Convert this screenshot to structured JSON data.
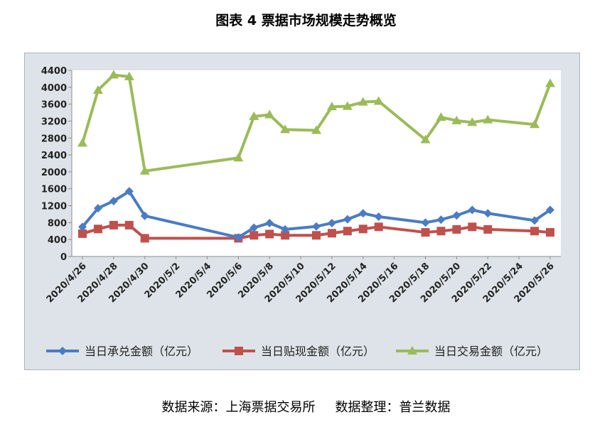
{
  "figure_title": "图表 4  票据市场规模走势概览",
  "source_note": "数据来源：上海票据交易所",
  "arrangement_note": "数据整理：普兰数据",
  "colors": {
    "background": "#dde3e8",
    "plot_bg": "#ffffff",
    "series": [
      "#4a7cc4",
      "#c0504d",
      "#9bbb59"
    ]
  },
  "chart_data": {
    "type": "line",
    "title": "",
    "xlabel": "",
    "ylabel": "",
    "ylim": [
      0,
      4400
    ],
    "yticks": [
      0,
      400,
      800,
      1200,
      1600,
      2000,
      2400,
      2800,
      3200,
      3600,
      4000,
      4400
    ],
    "x_axis_labels": [
      "2020/4/26",
      "2020/4/28",
      "2020/4/30",
      "2020/5/2",
      "2020/5/4",
      "2020/5/6",
      "2020/5/8",
      "2020/5/10",
      "2020/5/12",
      "2020/5/14",
      "2020/5/16",
      "2020/5/18",
      "2020/5/20",
      "2020/5/22",
      "2020/5/24",
      "2020/5/26"
    ],
    "x": [
      "2020/4/26",
      "2020/4/27",
      "2020/4/28",
      "2020/4/29",
      "2020/4/30",
      "2020/5/6",
      "2020/5/7",
      "2020/5/8",
      "2020/5/9",
      "2020/5/11",
      "2020/5/12",
      "2020/5/13",
      "2020/5/14",
      "2020/5/15",
      "2020/5/18",
      "2020/5/19",
      "2020/5/20",
      "2020/5/21",
      "2020/5/22",
      "2020/5/25",
      "2020/5/26"
    ],
    "series": [
      {
        "name": "当日承兑金额（亿元）",
        "marker": "diamond",
        "values": [
          700,
          1140,
          1310,
          1540,
          960,
          450,
          680,
          790,
          640,
          710,
          790,
          880,
          1020,
          940,
          800,
          870,
          970,
          1100,
          1020,
          850,
          1100
        ]
      },
      {
        "name": "当日贴现金额（亿元）",
        "marker": "square",
        "values": [
          540,
          650,
          740,
          740,
          430,
          430,
          500,
          530,
          500,
          500,
          550,
          600,
          650,
          700,
          570,
          600,
          640,
          700,
          640,
          600,
          570
        ]
      },
      {
        "name": "当日交易金额（亿元）",
        "marker": "triangle",
        "values": [
          2680,
          3930,
          4290,
          4250,
          2020,
          2330,
          3310,
          3350,
          3000,
          2980,
          3540,
          3550,
          3650,
          3670,
          2760,
          3290,
          3210,
          3170,
          3230,
          3120,
          4090
        ]
      }
    ],
    "grid": false,
    "legend": "bottom"
  }
}
